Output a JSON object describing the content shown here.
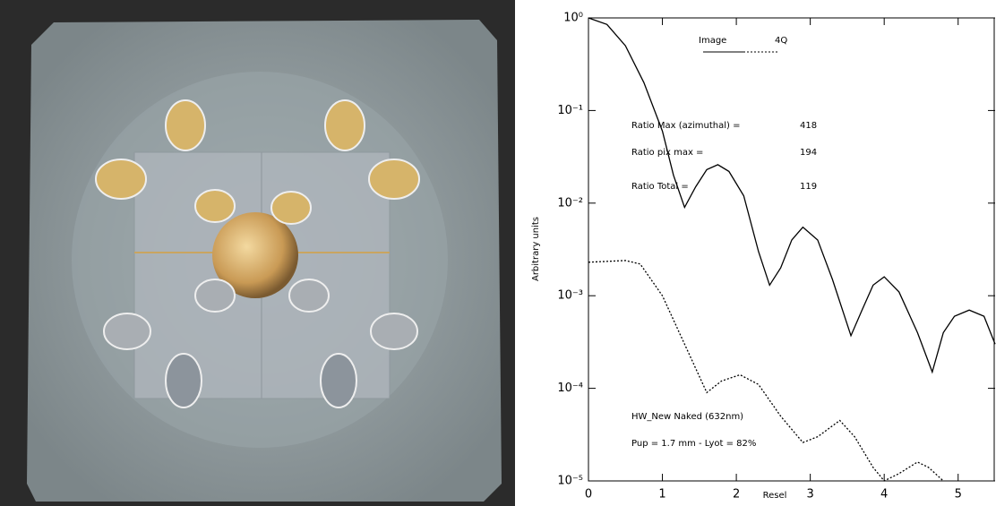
{
  "chart_data": {
    "type": "line",
    "x_label": "Resel",
    "y_label": "Arbitrary units",
    "xlim": [
      0,
      5.5
    ],
    "xticks": [
      0,
      1,
      2,
      3,
      4,
      5
    ],
    "ylim": [
      1e-05,
      1
    ],
    "ylog": true,
    "yticks": [
      {
        "value": 1,
        "label": "10⁰"
      },
      {
        "value": 0.1,
        "label": "10⁻¹"
      },
      {
        "value": 0.01,
        "label": "10⁻²"
      },
      {
        "value": 0.001,
        "label": "10⁻³"
      },
      {
        "value": 0.0001,
        "label": "10⁻⁴"
      },
      {
        "value": 1e-05,
        "label": "10⁻⁵"
      }
    ],
    "series": [
      {
        "name": "Image",
        "color": "#000000",
        "dash": "solid",
        "x": [
          0,
          0.25,
          0.5,
          0.75,
          1.0,
          1.15,
          1.3,
          1.45,
          1.6,
          1.75,
          1.9,
          2.1,
          2.3,
          2.45,
          2.6,
          2.75,
          2.9,
          3.1,
          3.3,
          3.55,
          3.7,
          3.85,
          4.0,
          4.2,
          4.45,
          4.65,
          4.8,
          4.95,
          5.15,
          5.35,
          5.5
        ],
        "values": [
          1.0,
          0.85,
          0.5,
          0.2,
          0.06,
          0.02,
          0.009,
          0.015,
          0.023,
          0.026,
          0.022,
          0.012,
          0.003,
          0.0013,
          0.002,
          0.004,
          0.0055,
          0.004,
          0.0015,
          0.00037,
          0.0007,
          0.0013,
          0.0016,
          0.0011,
          0.0004,
          0.00015,
          0.0004,
          0.0006,
          0.0007,
          0.0006,
          0.0003
        ]
      },
      {
        "name": "4Q",
        "color": "#000000",
        "dash": "dotted",
        "x": [
          0,
          0.5,
          0.7,
          1.0,
          1.3,
          1.6,
          1.8,
          2.05,
          2.3,
          2.6,
          2.9,
          3.1,
          3.4,
          3.6,
          3.85,
          4.0,
          4.2,
          4.45,
          4.6,
          4.8
        ],
        "values": [
          0.0023,
          0.0024,
          0.0022,
          0.001,
          0.0003,
          9e-05,
          0.00012,
          0.00014,
          0.00011,
          5e-05,
          2.6e-05,
          3e-05,
          4.5e-05,
          3e-05,
          1.4e-05,
          1e-05,
          1.2e-05,
          1.6e-05,
          1.4e-05,
          1e-05
        ]
      }
    ],
    "annotations": [
      {
        "label": "Ratio Max (azimuthal) =",
        "value": 418
      },
      {
        "label": "Ratio pix max =",
        "value": 194
      },
      {
        "label": "Ratio Total =",
        "value": 119
      }
    ],
    "notes": [
      "HW_New Naked (632nm)",
      "Pup = 1.7 mm - Lyot = 82%"
    ]
  }
}
